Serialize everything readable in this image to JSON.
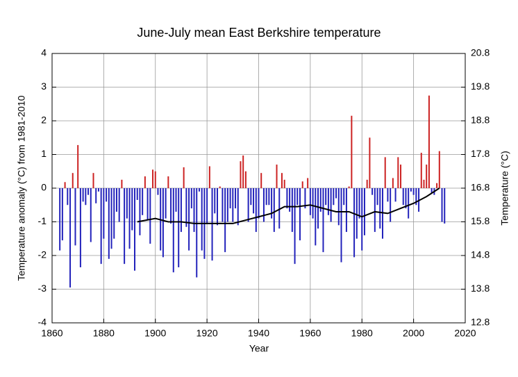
{
  "chart_data": {
    "type": "bar",
    "title": "June-July mean East Berkshire temperature",
    "xlabel": "Year",
    "ylabel": "Temperature anomaly (°C) from 1981-2010",
    "y2label": "Temperature (°C)",
    "xlim": [
      1860,
      2020
    ],
    "xticks": [
      1860,
      1880,
      1900,
      1920,
      1940,
      1960,
      1980,
      2000,
      2020
    ],
    "ylim": [
      -4,
      4
    ],
    "yticks": [
      -4,
      -3,
      -2,
      -1,
      0,
      1,
      2,
      3,
      4
    ],
    "y2lim": [
      12.8,
      20.8
    ],
    "y2ticks": [
      12.8,
      13.8,
      14.8,
      15.8,
      16.8,
      17.8,
      18.8,
      19.8,
      20.8
    ],
    "grid": true,
    "positive_color": "#cc2222",
    "negative_color": "#2222bb",
    "x": [
      1863,
      1864,
      1865,
      1866,
      1867,
      1868,
      1869,
      1870,
      1871,
      1872,
      1873,
      1874,
      1875,
      1876,
      1877,
      1878,
      1879,
      1880,
      1881,
      1882,
      1883,
      1884,
      1885,
      1886,
      1887,
      1888,
      1889,
      1890,
      1891,
      1892,
      1893,
      1894,
      1895,
      1896,
      1897,
      1898,
      1899,
      1900,
      1901,
      1902,
      1903,
      1904,
      1905,
      1906,
      1907,
      1908,
      1909,
      1910,
      1911,
      1912,
      1913,
      1914,
      1915,
      1916,
      1917,
      1918,
      1919,
      1920,
      1921,
      1922,
      1923,
      1924,
      1925,
      1926,
      1927,
      1928,
      1929,
      1930,
      1931,
      1932,
      1933,
      1934,
      1935,
      1936,
      1937,
      1938,
      1939,
      1940,
      1941,
      1942,
      1943,
      1944,
      1945,
      1946,
      1947,
      1948,
      1949,
      1950,
      1951,
      1952,
      1953,
      1954,
      1955,
      1956,
      1957,
      1958,
      1959,
      1960,
      1961,
      1962,
      1963,
      1964,
      1965,
      1966,
      1967,
      1968,
      1969,
      1970,
      1971,
      1972,
      1973,
      1974,
      1975,
      1976,
      1977,
      1978,
      1979,
      1980,
      1981,
      1982,
      1983,
      1984,
      1985,
      1986,
      1987,
      1988,
      1989,
      1990,
      1991,
      1992,
      1993,
      1994,
      1995,
      1996,
      1997,
      1998,
      1999,
      2000,
      2001,
      2002,
      2003,
      2004,
      2005,
      2006,
      2007,
      2008,
      2009,
      2010,
      2011,
      2012
    ],
    "values": [
      -1.85,
      -1.55,
      0.18,
      -0.5,
      -2.95,
      0.45,
      -1.7,
      1.28,
      -2.35,
      -0.4,
      -0.5,
      -0.2,
      -1.6,
      0.45,
      -0.45,
      -0.1,
      -2.25,
      -1.5,
      -0.4,
      -2.1,
      -1.8,
      -1.5,
      -0.7,
      -1.0,
      0.25,
      -2.25,
      -0.9,
      -1.8,
      -1.25,
      -2.45,
      -0.35,
      -1.4,
      -0.8,
      0.35,
      -0.95,
      -1.65,
      0.55,
      0.5,
      -0.2,
      -1.85,
      -2.05,
      -0.9,
      0.35,
      -1.05,
      -2.5,
      -0.7,
      -2.35,
      -1.3,
      0.62,
      -1.15,
      -1.85,
      -0.6,
      -1.3,
      -2.65,
      -0.1,
      -1.85,
      -2.1,
      -1.05,
      0.65,
      -2.15,
      -0.75,
      -1.1,
      0.05,
      -1.0,
      -1.9,
      -1.0,
      -0.6,
      -1.0,
      -0.6,
      -1.1,
      0.8,
      0.97,
      0.5,
      -1.0,
      -0.5,
      -0.75,
      -1.3,
      -0.9,
      0.45,
      -1.0,
      -0.5,
      -0.5,
      -0.9,
      -1.3,
      0.7,
      -1.2,
      0.45,
      0.25,
      -0.6,
      -0.7,
      -1.3,
      -2.25,
      -0.5,
      -1.55,
      0.2,
      -0.6,
      0.3,
      -0.8,
      -0.9,
      -1.7,
      -1.2,
      -0.7,
      -1.9,
      -0.5,
      -0.8,
      -1.0,
      -0.5,
      -0.3,
      -1.1,
      -2.2,
      -0.5,
      -1.3,
      0.05,
      2.15,
      -2.05,
      -1.5,
      -0.9,
      -1.85,
      -1.4,
      0.25,
      1.5,
      -0.2,
      -1.3,
      -0.5,
      -1.2,
      -1.5,
      0.92,
      -0.4,
      -1.0,
      0.3,
      -0.4,
      0.92,
      0.7,
      -0.5,
      -0.6,
      -0.9,
      -0.1,
      -0.2,
      -0.5,
      -0.7,
      1.05,
      0.25,
      0.7,
      2.75,
      -0.15,
      -0.2,
      0.15,
      1.1,
      -1.0,
      -1.05
    ],
    "trend": {
      "color": "#000000",
      "x": [
        1893,
        1900,
        1905,
        1910,
        1915,
        1920,
        1925,
        1930,
        1935,
        1940,
        1945,
        1950,
        1955,
        1960,
        1965,
        1970,
        1975,
        1980,
        1985,
        1990,
        1995,
        2000,
        2005,
        2010
      ],
      "values": [
        -1.0,
        -0.9,
        -1.0,
        -1.0,
        -1.05,
        -1.05,
        -1.05,
        -1.05,
        -0.95,
        -0.85,
        -0.75,
        -0.55,
        -0.55,
        -0.5,
        -0.6,
        -0.7,
        -0.7,
        -0.85,
        -0.7,
        -0.75,
        -0.6,
        -0.45,
        -0.25,
        0.0
      ]
    }
  }
}
